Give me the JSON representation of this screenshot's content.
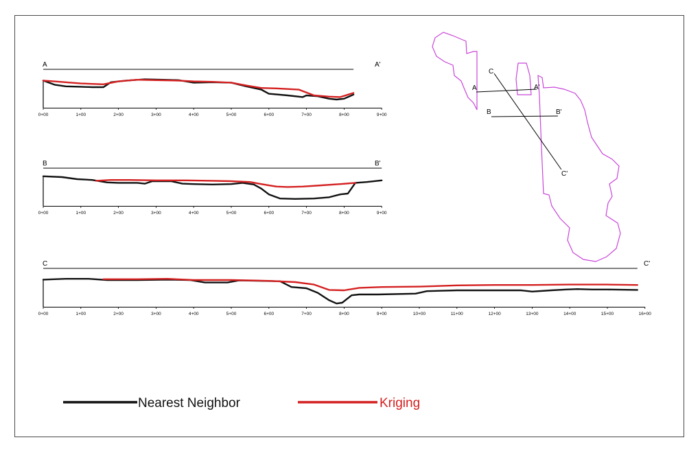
{
  "colors": {
    "nearest_neighbor": "#111111",
    "kriging": "#d42020",
    "site_outline": "#c845d8",
    "frame": "#4a4a4a"
  },
  "legend": {
    "nearest_label": "Nearest Neighbor",
    "kriging_label": "Kriging"
  },
  "chart_data": [
    {
      "type": "line",
      "start_label": "A",
      "end_label": "A'",
      "xlim": [
        0,
        9
      ],
      "ylim": [
        0,
        45
      ],
      "tick_labels": [
        "0+00",
        "1+00",
        "2+00",
        "3+00",
        "4+00",
        "5+00",
        "6+00",
        "7+00",
        "8+00",
        "9+00"
      ],
      "series": [
        {
          "name": "Nearest Neighbor",
          "x": [
            0,
            0.3,
            0.6,
            1.0,
            1.3,
            1.6,
            1.8,
            2.2,
            2.7,
            3.2,
            3.6,
            4.0,
            4.5,
            5.0,
            5.4,
            5.8,
            6.0,
            6.5,
            6.9,
            7.0,
            7.3,
            7.6,
            7.8,
            8.0,
            8.25
          ],
          "y": [
            33,
            28,
            26,
            25.5,
            25,
            25,
            31,
            33,
            34.5,
            34,
            33.5,
            30.5,
            31,
            30.5,
            26,
            22,
            17,
            15,
            13,
            15,
            14,
            11,
            10,
            11,
            16
          ]
        },
        {
          "name": "Kriging",
          "x": [
            0,
            0.3,
            1.0,
            1.6,
            2.0,
            2.5,
            3.0,
            3.6,
            4.0,
            4.5,
            5.0,
            5.4,
            5.8,
            6.2,
            6.8,
            7.2,
            7.6,
            7.9,
            8.25
          ],
          "y": [
            33,
            32,
            29.5,
            28.5,
            32,
            34,
            33.5,
            33,
            32,
            31.5,
            30.5,
            27,
            24,
            23.5,
            22,
            15,
            13.5,
            13,
            18
          ]
        }
      ]
    },
    {
      "type": "line",
      "start_label": "B",
      "end_label": "B'",
      "xlim": [
        0,
        9
      ],
      "ylim": [
        0,
        45
      ],
      "tick_labels": [
        "0+00",
        "1+00",
        "2+00",
        "3+00",
        "4+00",
        "5+00",
        "6+00",
        "7+00",
        "8+00",
        "9+00"
      ],
      "series": [
        {
          "name": "Nearest Neighbor",
          "x": [
            0,
            0.5,
            0.9,
            1.3,
            1.7,
            2.0,
            2.5,
            2.7,
            2.9,
            3.4,
            3.7,
            4.0,
            4.5,
            5.0,
            5.3,
            5.6,
            5.8,
            6.0,
            6.3,
            6.7,
            7.2,
            7.6,
            7.9,
            8.1,
            8.3,
            8.6,
            9.0
          ],
          "y": [
            36,
            35,
            32.5,
            31.5,
            28.5,
            28,
            28,
            27,
            30,
            30,
            27,
            26.5,
            26,
            26.5,
            28,
            26,
            21,
            14,
            9,
            8.5,
            9,
            10.5,
            14,
            15,
            28,
            29,
            31
          ]
        },
        {
          "name": "Kriging",
          "x": [
            1.4,
            1.8,
            2.3,
            3.0,
            3.8,
            4.5,
            5.0,
            5.5,
            5.8,
            6.2,
            6.5,
            6.9,
            7.4,
            7.9,
            8.3
          ],
          "y": [
            30.5,
            31.5,
            31.5,
            31,
            31,
            30.5,
            30,
            29,
            26.5,
            23.5,
            23,
            23.5,
            25,
            26.5,
            28
          ]
        }
      ]
    },
    {
      "type": "line",
      "start_label": "C",
      "end_label": "C'",
      "xlim": [
        0,
        16
      ],
      "ylim": [
        0,
        45
      ],
      "tick_labels": [
        "0+00",
        "1+00",
        "2+00",
        "3+00",
        "4+00",
        "5+00",
        "6+00",
        "7+00",
        "8+00",
        "9+00",
        "10+00",
        "11+00",
        "12+00",
        "13+00",
        "14+00",
        "15+00",
        "16+00"
      ],
      "series": [
        {
          "name": "Nearest Neighbor",
          "x": [
            0,
            0.6,
            1.2,
            1.7,
            2.5,
            3.3,
            3.9,
            4.3,
            4.9,
            5.2,
            5.8,
            6.3,
            6.6,
            7.0,
            7.3,
            7.6,
            7.8,
            7.95,
            8.2,
            8.4,
            8.9,
            9.9,
            10.2,
            11.0,
            12.0,
            12.7,
            13.0,
            13.5,
            13.9,
            14.2,
            14.6,
            15.0,
            15.8
          ],
          "y": [
            33,
            34,
            34,
            32.5,
            32.5,
            33,
            32.5,
            29.5,
            29.5,
            32,
            31.5,
            31,
            24,
            22.5,
            17,
            8,
            4,
            5,
            14,
            15,
            15,
            16,
            19,
            20,
            20,
            20,
            18.5,
            20,
            21,
            21.5,
            21,
            21,
            20.5
          ]
        },
        {
          "name": "Kriging",
          "x": [
            1.6,
            2.5,
            3.3,
            4.0,
            5.0,
            6.0,
            6.7,
            7.2,
            7.6,
            8.0,
            8.4,
            9.0,
            10.0,
            11.0,
            12.0,
            13.0,
            14.0,
            15.0,
            15.8
          ],
          "y": [
            33.5,
            33.5,
            34,
            32.5,
            32.5,
            31.5,
            30,
            27,
            20.5,
            20,
            23,
            24,
            24.5,
            26,
            26.5,
            26.5,
            27,
            27,
            26.5
          ]
        }
      ]
    }
  ],
  "map": {
    "section_labels": [
      "A",
      "A'",
      "B",
      "B'",
      "C",
      "C'"
    ]
  }
}
